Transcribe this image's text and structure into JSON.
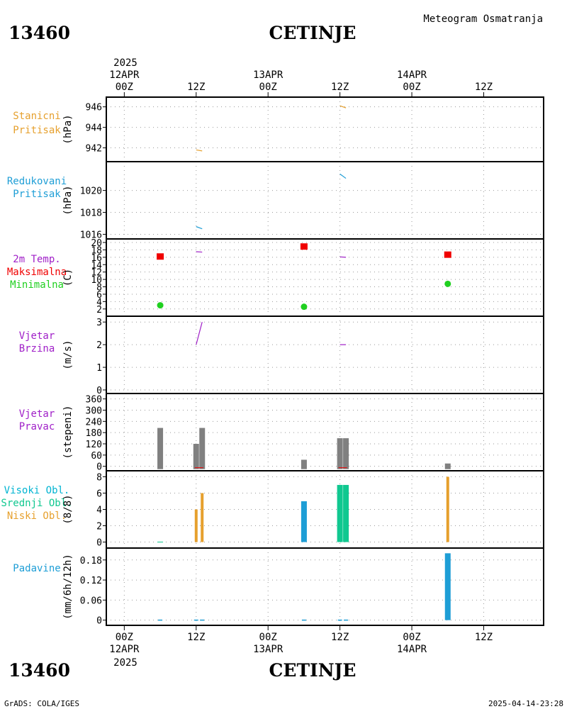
{
  "header": {
    "station_id": "13460",
    "station_name": "CETINJE",
    "product": "Meteogram Osmatranja",
    "footer_left": "GrADS: COLA/IGES",
    "footer_right": "2025-04-14-23:28"
  },
  "time_axis": {
    "top_year": "2025",
    "bottom_year": "2025",
    "ticks": [
      {
        "label": "00Z",
        "date": "12APR",
        "hour": 0
      },
      {
        "label": "12Z",
        "date": "",
        "hour": 12
      },
      {
        "label": "00Z",
        "date": "13APR",
        "hour": 24
      },
      {
        "label": "12Z",
        "date": "",
        "hour": 36
      },
      {
        "label": "00Z",
        "date": "14APR",
        "hour": 48
      },
      {
        "label": "12Z",
        "date": "",
        "hour": 60
      }
    ],
    "range_hours": [
      -3,
      70
    ]
  },
  "colors": {
    "station_pressure": "#e6a02d",
    "reduced_pressure": "#1e9ed6",
    "max_temp": "#f00000",
    "min_temp": "#20d020",
    "wind": "#a020c8",
    "wind_dir_bar": "#808080",
    "high_cloud": "#00b4d2",
    "mid_cloud": "#10c890",
    "low_cloud": "#e6a02d",
    "precip": "#1e9ed6"
  },
  "chart_data": [
    {
      "panel": "station_pressure",
      "type": "line",
      "labels": [
        "Stanicni",
        "Pritisak"
      ],
      "ylabel": "(hPa)",
      "ylim": [
        941,
        946.6
      ],
      "yticks": [
        942,
        944,
        946
      ],
      "series": [
        {
          "values": [
            [
              12,
              941.8
            ],
            [
              13,
              941.7
            ]
          ]
        },
        {
          "values": [
            [
              36,
              946.1
            ],
            [
              37,
              945.9
            ]
          ]
        }
      ]
    },
    {
      "panel": "reduced_pressure",
      "type": "line",
      "labels": [
        "Redukovani",
        "Pritisak"
      ],
      "ylabel": "(hPa)",
      "ylim": [
        1015.9,
        1022.3
      ],
      "yticks": [
        1016,
        1018,
        1020
      ],
      "series": [
        {
          "values": [
            [
              12,
              1016.7
            ],
            [
              13,
              1016.5
            ]
          ]
        },
        {
          "values": [
            [
              36,
              1021.5
            ],
            [
              37,
              1021.1
            ]
          ]
        }
      ]
    },
    {
      "panel": "temperature",
      "type": "scatter",
      "labels": [
        "2m Temp.",
        "Maksimalna",
        "Minimalna"
      ],
      "ylabel": "(C)",
      "ylim": [
        1,
        20
      ],
      "yticks": [
        2,
        4,
        6,
        8,
        10,
        12,
        14,
        16,
        18,
        20
      ],
      "temp_segments": [
        {
          "values": [
            [
              12,
              17.5
            ],
            [
              13,
              17.4
            ]
          ]
        },
        {
          "values": [
            [
              36,
              16.1
            ],
            [
              37,
              16.0
            ]
          ]
        }
      ],
      "max": [
        [
          6,
          16.3
        ],
        [
          30,
          19.0
        ],
        [
          54,
          16.8
        ]
      ],
      "min": [
        [
          6,
          3.0
        ],
        [
          30,
          2.6
        ],
        [
          54,
          8.8
        ]
      ]
    },
    {
      "panel": "wind_speed",
      "type": "line",
      "labels": [
        "Vjetar",
        "Brzina"
      ],
      "ylabel": "(m/s)",
      "ylim": [
        0,
        3.1
      ],
      "yticks": [
        0,
        1,
        2,
        3
      ],
      "series": [
        {
          "values": [
            [
              12,
              2.0
            ],
            [
              13,
              3.0
            ]
          ]
        },
        {
          "values": [
            [
              36,
              2.0
            ],
            [
              37,
              2.0
            ]
          ]
        }
      ]
    },
    {
      "panel": "wind_direction",
      "type": "bar",
      "labels": [
        "Vjetar",
        "Pravac"
      ],
      "ylabel": "(stepeni)",
      "ylim": [
        -5,
        370
      ],
      "yticks": [
        0,
        60,
        120,
        180,
        240,
        300,
        360
      ],
      "bars": [
        [
          6,
          205
        ],
        [
          12,
          120
        ],
        [
          13,
          205
        ],
        [
          30,
          35
        ],
        [
          36,
          150
        ],
        [
          37,
          150
        ],
        [
          54,
          15
        ]
      ]
    },
    {
      "panel": "clouds",
      "type": "bar",
      "labels": [
        "Visoki Obl.",
        "Srednji Obl.",
        "Niski Obl."
      ],
      "ylabel": "(8/8)",
      "ylim": [
        -0.3,
        8.3
      ],
      "yticks": [
        0,
        2,
        4,
        6,
        8
      ],
      "high": [
        [
          30,
          5
        ]
      ],
      "mid": [
        [
          36,
          7
        ],
        [
          37,
          7
        ]
      ],
      "low": [
        [
          12,
          4
        ],
        [
          13,
          6
        ],
        [
          54,
          8
        ]
      ],
      "trace": [
        6
      ]
    },
    {
      "panel": "precipitation",
      "type": "bar",
      "labels": [
        "Padavine"
      ],
      "ylabel": "(mm/6h/12h)",
      "ylim": [
        -0.005,
        0.205
      ],
      "yticks": [
        0,
        0.06,
        0.12,
        0.18
      ],
      "ytick_labels": [
        "0",
        "0.06",
        "0.12",
        "0.18"
      ],
      "bars": [
        [
          54,
          0.2
        ]
      ],
      "trace": [
        6,
        12,
        13,
        30,
        36,
        37
      ]
    }
  ]
}
